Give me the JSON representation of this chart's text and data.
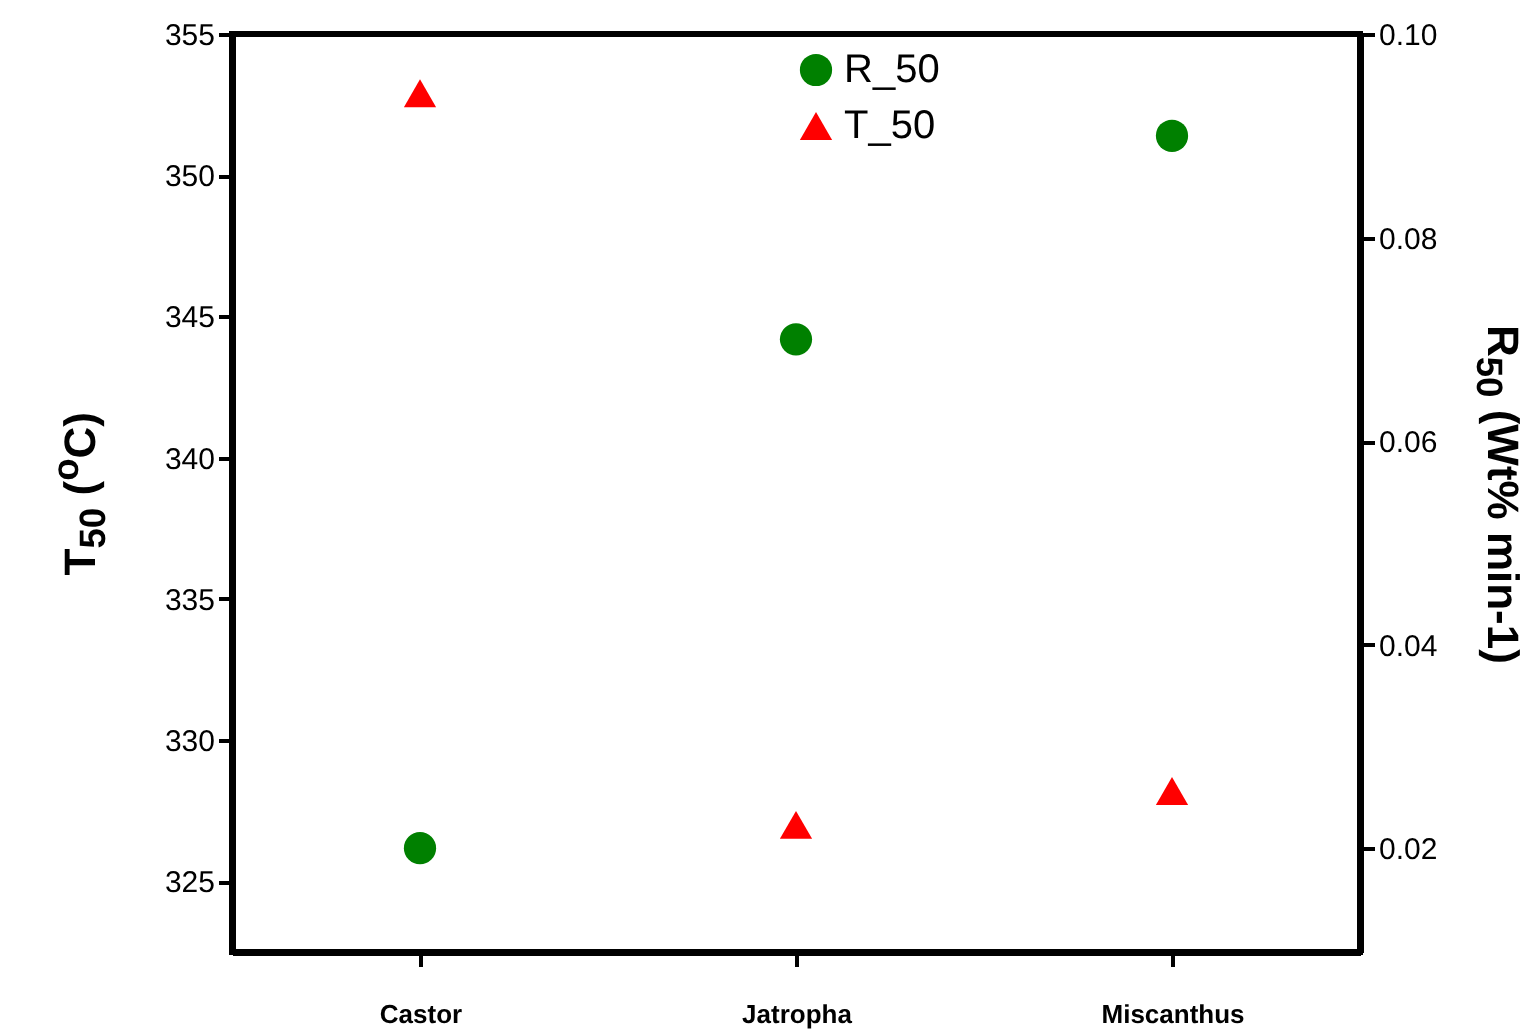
{
  "chart_data": {
    "type": "scatter",
    "categories": [
      "Castor",
      "Jatropha",
      "Miscanthus"
    ],
    "series": [
      {
        "name": "R_50",
        "color": "#008000",
        "marker": "circle",
        "axis": "y2",
        "values": [
          0.02,
          0.07,
          0.09
        ]
      },
      {
        "name": "T_50",
        "color": "#ff0000",
        "marker": "triangle",
        "values": [
          352.9,
          327.0,
          328.2
        ]
      }
    ],
    "ylabel": "T$_{50}$ ($^{o}$C)",
    "y2label": "R$_{50}$ (Wt% min-1)",
    "ylim": [
      322.5,
      355
    ],
    "yticks": [
      325,
      330,
      335,
      340,
      345,
      350,
      355
    ],
    "y2lim": [
      0.0098,
      0.1
    ],
    "y2ticks": [
      {
        "value": 0.02,
        "label": "0.02"
      },
      {
        "value": 0.04,
        "label": "0.04"
      },
      {
        "value": 0.06,
        "label": "0.06"
      },
      {
        "value": 0.08,
        "label": "0.08"
      },
      {
        "value": 0.1,
        "label": "0.10"
      }
    ],
    "grid": false,
    "legend": "top"
  }
}
